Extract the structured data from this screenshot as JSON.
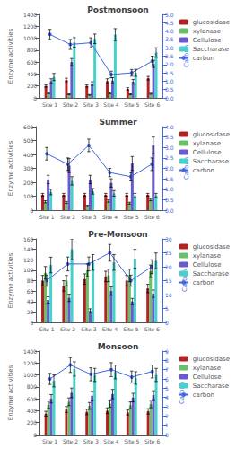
{
  "chart_data": [
    {
      "type": "bar",
      "title": "Postmonsoon",
      "categories": [
        "Site 1",
        "Site 2",
        "Site 3",
        "Site 4",
        "Site 5",
        "Site 6"
      ],
      "ylabel": "Enzyme activities",
      "y2label": "Carbon",
      "series": [
        {
          "name": "glucosidase",
          "color": "#b22222",
          "values": [
            200,
            300,
            200,
            280,
            150,
            330
          ],
          "errors": [
            20,
            30,
            20,
            40,
            20,
            30
          ]
        },
        {
          "name": "xylanase",
          "color": "#6abf6a",
          "values": [
            80,
            60,
            50,
            80,
            60,
            70
          ],
          "errors": [
            10,
            8,
            6,
            10,
            8,
            8
          ]
        },
        {
          "name": "Cellulose",
          "color": "#6a5acd",
          "values": [
            280,
            600,
            240,
            290,
            270,
            570
          ],
          "errors": [
            40,
            60,
            30,
            50,
            40,
            60
          ]
        },
        {
          "name": "Saccharase",
          "color": "#48d1cc",
          "values": [
            350,
            930,
            990,
            1060,
            420,
            760
          ],
          "errors": [
            60,
            80,
            80,
            100,
            60,
            80
          ]
        },
        {
          "name": "carbon",
          "type": "line",
          "axis": "y2",
          "color": "#4169e1",
          "marker": "o",
          "values": [
            3.8,
            3.2,
            3.3,
            1.4,
            1.5,
            2.2
          ],
          "errors": [
            0.3,
            0.3,
            0.3,
            0.2,
            0.2,
            0.3
          ]
        }
      ],
      "ylim": [
        0,
        1400
      ],
      "yticks": [
        0,
        200,
        400,
        600,
        800,
        1000,
        1200,
        1400
      ],
      "y2lim": [
        0,
        5
      ],
      "y2ticks": [
        {
          "value": 0,
          "label": "0.0"
        },
        0.5,
        {
          "value": 1,
          "label": "1.0"
        },
        1.5,
        {
          "value": 2,
          "label": "2.0"
        },
        2.5,
        {
          "value": 3,
          "label": "3.0"
        },
        3.5,
        {
          "value": 4,
          "label": "4.0"
        },
        4.5,
        {
          "value": 5,
          "label": "5.0"
        }
      ],
      "grid": false,
      "legend": "upper right"
    },
    {
      "type": "bar",
      "title": "Summer",
      "categories": [
        "Site 1",
        "Site 2",
        "Site 3",
        "Site 4",
        "Site 5",
        "Site 6"
      ],
      "ylabel": "Enzyme activities",
      "y2label": "Carbon",
      "series": [
        {
          "name": "glucosidase",
          "color": "#b22222",
          "values": [
            110,
            110,
            110,
            110,
            110,
            110
          ],
          "errors": [
            10,
            10,
            10,
            10,
            10,
            10
          ]
        },
        {
          "name": "xylanase",
          "color": "#6abf6a",
          "values": [
            60,
            55,
            30,
            65,
            50,
            75
          ],
          "errors": [
            8,
            7,
            5,
            8,
            7,
            8
          ]
        },
        {
          "name": "Cellulose",
          "color": "#6a5acd",
          "values": [
            220,
            320,
            220,
            195,
            335,
            465
          ],
          "errors": [
            30,
            50,
            30,
            30,
            50,
            60
          ]
        },
        {
          "name": "Saccharase",
          "color": "#48d1cc",
          "values": [
            130,
            210,
            135,
            120,
            105,
            105
          ],
          "errors": [
            20,
            30,
            20,
            20,
            15,
            15
          ]
        },
        {
          "name": "carbon",
          "type": "line",
          "axis": "y2",
          "color": "#4169e1",
          "marker": "o",
          "values": [
            2.7,
            2.2,
            3.1,
            1.8,
            1.6,
            2.2
          ],
          "errors": [
            0.3,
            0.3,
            0.3,
            0.2,
            0.2,
            0.3
          ]
        }
      ],
      "ylim": [
        0,
        600
      ],
      "yticks": [
        0,
        100,
        200,
        300,
        400,
        500,
        600
      ],
      "y2lim": [
        0,
        4.0
      ],
      "y2ticks": [
        {
          "value": 0,
          "label": "0.0"
        },
        0.5,
        {
          "value": 1,
          "label": "1.0"
        },
        1.5,
        {
          "value": 2,
          "label": "2.0"
        },
        2.5,
        {
          "value": 3,
          "label": "3.0"
        },
        3.5,
        {
          "value": 4,
          "label": "4.0"
        }
      ],
      "grid": false,
      "legend": "upper right"
    },
    {
      "type": "bar",
      "title": "Pre-Monsoon",
      "categories": [
        "Site 1",
        "Site 2",
        "Site 3",
        "Site 4",
        "Site 5",
        "Site 6"
      ],
      "ylabel": "Enzyme activities",
      "y2label": "Carbon",
      "series": [
        {
          "name": "glucosidase",
          "color": "#b22222",
          "values": [
            80,
            70,
            83,
            88,
            80,
            65
          ],
          "errors": [
            10,
            10,
            10,
            10,
            10,
            8
          ]
        },
        {
          "name": "xylanase",
          "color": "#6abf6a",
          "values": [
            95,
            80,
            100,
            90,
            90,
            98
          ],
          "errors": [
            12,
            10,
            12,
            12,
            12,
            12
          ]
        },
        {
          "name": "Cellulose",
          "color": "#6a5acd",
          "values": [
            43,
            47,
            22,
            60,
            40,
            55
          ],
          "errors": [
            6,
            7,
            4,
            8,
            6,
            7
          ]
        },
        {
          "name": "Saccharase",
          "color": "#48d1cc",
          "values": [
            110,
            140,
            115,
            115,
            122,
            118
          ],
          "errors": [
            15,
            20,
            15,
            15,
            18,
            15
          ]
        },
        {
          "name": "carbon",
          "type": "line",
          "axis": "y2",
          "color": "#4169e1",
          "marker": "o",
          "values": [
            15,
            21,
            21,
            25,
            15,
            20
          ],
          "errors": [
            2,
            2.5,
            2.5,
            3,
            2,
            2.5
          ]
        }
      ],
      "ylim": [
        0,
        160
      ],
      "yticks": [
        0,
        20,
        40,
        60,
        80,
        100,
        120,
        140,
        160
      ],
      "y2lim": [
        0,
        30
      ],
      "y2ticks": [
        0,
        5,
        10,
        15,
        20,
        25,
        30
      ],
      "grid": false,
      "legend": "upper right"
    },
    {
      "type": "bar",
      "title": "Monsoon",
      "categories": [
        "Site 1",
        "Site 2",
        "Site 3",
        "Site 4",
        "Site 5",
        "Site 6"
      ],
      "ylabel": "Enzyme activities",
      "y2label": "Carbon",
      "series": [
        {
          "name": "glucosidase",
          "color": "#b22222",
          "values": [
            350,
            420,
            380,
            400,
            370,
            390
          ],
          "errors": [
            40,
            50,
            45,
            48,
            42,
            45
          ]
        },
        {
          "name": "xylanase",
          "color": "#6abf6a",
          "values": [
            500,
            550,
            480,
            520,
            490,
            510
          ],
          "errors": [
            60,
            65,
            58,
            62,
            58,
            60
          ]
        },
        {
          "name": "Cellulose",
          "color": "#6a5acd",
          "values": [
            600,
            700,
            650,
            680,
            620,
            660
          ],
          "errors": [
            70,
            80,
            75,
            78,
            72,
            75
          ]
        },
        {
          "name": "Saccharase",
          "color": "#48d1cc",
          "values": [
            900,
            1100,
            1000,
            1050,
            950,
            1000
          ],
          "errors": [
            100,
            120,
            110,
            115,
            105,
            110
          ]
        },
        {
          "name": "carbon",
          "type": "line",
          "axis": "y2",
          "color": "#4169e1",
          "marker": "o",
          "values": [
            6.0,
            7.5,
            6.5,
            7.0,
            6.2,
            6.8
          ],
          "errors": [
            0.6,
            0.8,
            0.7,
            0.75,
            0.65,
            0.7
          ]
        }
      ],
      "ylim": [
        0,
        1400
      ],
      "yticks": [
        0,
        200,
        400,
        600,
        800,
        1000,
        1200,
        1400
      ],
      "y2lim": [
        0,
        9
      ],
      "y2ticks": [
        0,
        1,
        2,
        3,
        4,
        5,
        6,
        7,
        8,
        9
      ],
      "grid": false,
      "legend": "upper right"
    }
  ]
}
